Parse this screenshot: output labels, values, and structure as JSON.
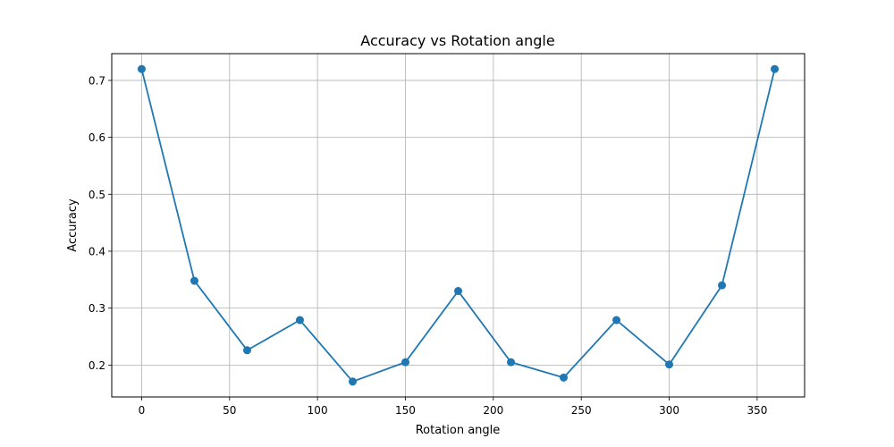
{
  "chart_data": {
    "type": "line",
    "title": "Accuracy vs Rotation angle",
    "xlabel": "Rotation angle",
    "ylabel": "Accuracy",
    "xlim": [
      -17,
      377
    ],
    "ylim": [
      0.144,
      0.747
    ],
    "xticks": [
      0,
      50,
      100,
      150,
      200,
      250,
      300,
      350
    ],
    "yticks": [
      0.2,
      0.3,
      0.4,
      0.5,
      0.6,
      0.7
    ],
    "grid": true,
    "series": [
      {
        "color": "#1f77b4",
        "marker": "circle",
        "x": [
          0,
          30,
          60,
          90,
          120,
          150,
          180,
          210,
          240,
          270,
          300,
          330,
          360
        ],
        "y": [
          0.72,
          0.348,
          0.226,
          0.279,
          0.171,
          0.205,
          0.33,
          0.205,
          0.178,
          0.279,
          0.201,
          0.34,
          0.72
        ]
      }
    ]
  }
}
